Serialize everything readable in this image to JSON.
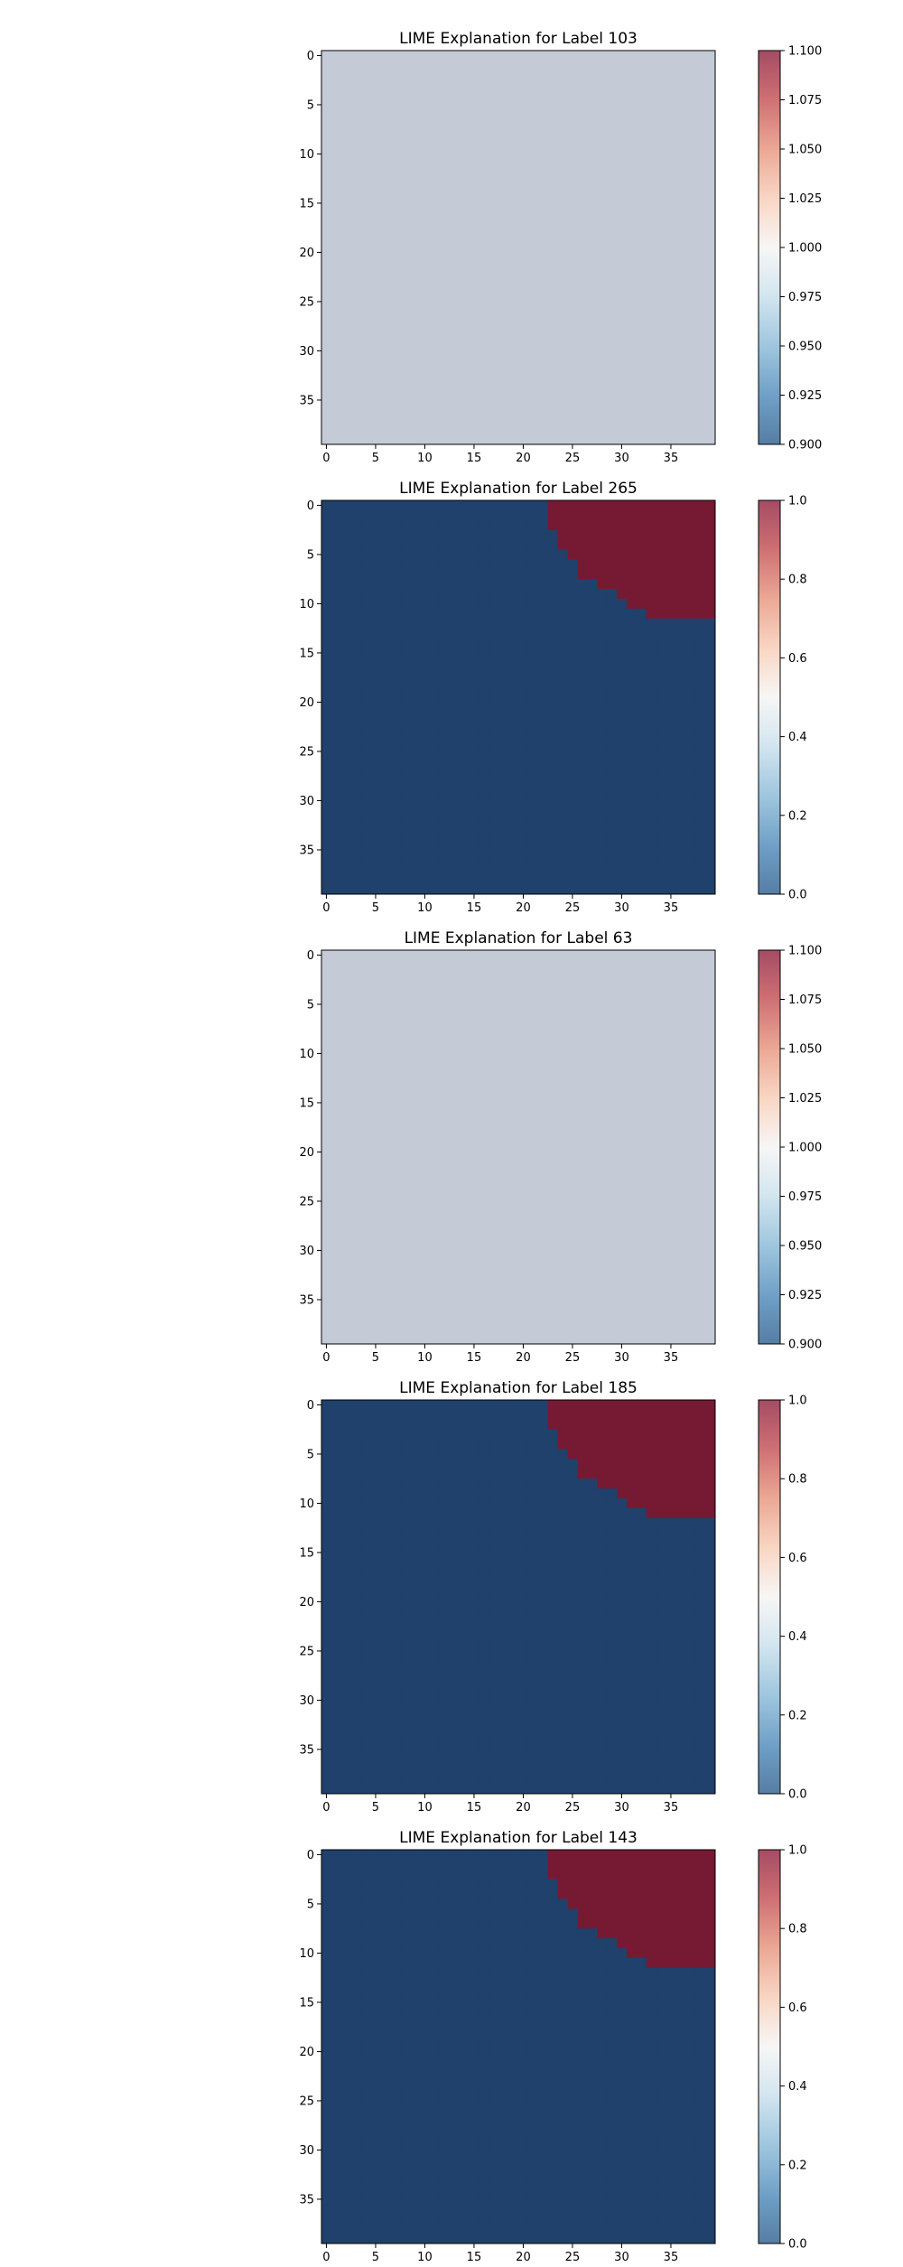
{
  "chart_data": [
    {
      "type": "heatmap",
      "title": "LIME Explanation for Label 103",
      "grid_size": 40,
      "x_ticks": [
        "0",
        "5",
        "10",
        "15",
        "20",
        "25",
        "30",
        "35"
      ],
      "y_ticks": [
        "0",
        "5",
        "10",
        "15",
        "20",
        "25",
        "30",
        "35"
      ],
      "colorbar": {
        "min": 0.9,
        "max": 1.1,
        "ticks": [
          "0.900",
          "0.925",
          "0.950",
          "0.975",
          "1.000",
          "1.025",
          "1.050",
          "1.075",
          "1.100"
        ],
        "colormap": "RdBu_r"
      },
      "uniform_value": 1.0,
      "cell_color_default": "#c4cbd7",
      "region_start_col_by_row": []
    },
    {
      "type": "heatmap",
      "title": "LIME Explanation for Label 265",
      "grid_size": 40,
      "x_ticks": [
        "0",
        "5",
        "10",
        "15",
        "20",
        "25",
        "30",
        "35"
      ],
      "y_ticks": [
        "0",
        "5",
        "10",
        "15",
        "20",
        "25",
        "30",
        "35"
      ],
      "colorbar": {
        "min": 0.0,
        "max": 1.0,
        "ticks": [
          "0.0",
          "0.2",
          "0.4",
          "0.6",
          "0.8",
          "1.0"
        ],
        "colormap": "RdBu_r"
      },
      "background_value": 0,
      "region_value": 1,
      "cell_color_default": "#1f416b",
      "cell_color_region": "#761a34",
      "region_start_col_by_row": [
        23,
        23,
        23,
        24,
        24,
        25,
        26,
        26,
        28,
        30,
        31,
        33
      ]
    },
    {
      "type": "heatmap",
      "title": "LIME Explanation for Label 63",
      "grid_size": 40,
      "x_ticks": [
        "0",
        "5",
        "10",
        "15",
        "20",
        "25",
        "30",
        "35"
      ],
      "y_ticks": [
        "0",
        "5",
        "10",
        "15",
        "20",
        "25",
        "30",
        "35"
      ],
      "colorbar": {
        "min": 0.9,
        "max": 1.1,
        "ticks": [
          "0.900",
          "0.925",
          "0.950",
          "0.975",
          "1.000",
          "1.025",
          "1.050",
          "1.075",
          "1.100"
        ],
        "colormap": "RdBu_r"
      },
      "uniform_value": 1.0,
      "cell_color_default": "#c4cbd7",
      "region_start_col_by_row": []
    },
    {
      "type": "heatmap",
      "title": "LIME Explanation for Label 185",
      "grid_size": 40,
      "x_ticks": [
        "0",
        "5",
        "10",
        "15",
        "20",
        "25",
        "30",
        "35"
      ],
      "y_ticks": [
        "0",
        "5",
        "10",
        "15",
        "20",
        "25",
        "30",
        "35"
      ],
      "colorbar": {
        "min": 0.0,
        "max": 1.0,
        "ticks": [
          "0.0",
          "0.2",
          "0.4",
          "0.6",
          "0.8",
          "1.0"
        ],
        "colormap": "RdBu_r"
      },
      "background_value": 0,
      "region_value": 1,
      "cell_color_default": "#1f416b",
      "cell_color_region": "#761a34",
      "region_start_col_by_row": [
        23,
        23,
        23,
        24,
        24,
        25,
        26,
        26,
        28,
        30,
        31,
        33
      ]
    },
    {
      "type": "heatmap",
      "title": "LIME Explanation for Label 143",
      "grid_size": 40,
      "x_ticks": [
        "0",
        "5",
        "10",
        "15",
        "20",
        "25",
        "30",
        "35"
      ],
      "y_ticks": [
        "0",
        "5",
        "10",
        "15",
        "20",
        "25",
        "30",
        "35"
      ],
      "colorbar": {
        "min": 0.0,
        "max": 1.0,
        "ticks": [
          "0.0",
          "0.2",
          "0.4",
          "0.6",
          "0.8",
          "1.0"
        ],
        "colormap": "RdBu_r"
      },
      "background_value": 0,
      "region_value": 1,
      "cell_color_default": "#1f416b",
      "cell_color_region": "#761a34",
      "region_start_col_by_row": [
        23,
        23,
        23,
        24,
        24,
        25,
        26,
        26,
        28,
        30,
        31,
        33
      ]
    }
  ]
}
